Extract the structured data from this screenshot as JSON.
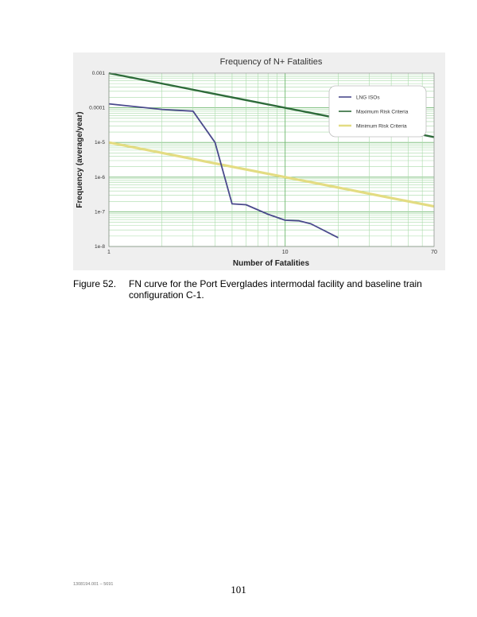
{
  "chart_data": {
    "type": "line",
    "title": "Frequency of N+ Fatalities",
    "xlabel": "Number of Fatalities",
    "ylabel": "Frequency (average/year)",
    "x_scale": "log",
    "y_scale": "log",
    "xlim": [
      1,
      70
    ],
    "ylim": [
      1e-08,
      0.001
    ],
    "x_tick_labels": [
      {
        "value": 1,
        "label": "1"
      },
      {
        "value": 10,
        "label": "10"
      },
      {
        "value": 70,
        "label": "70"
      }
    ],
    "y_tick_labels": [
      {
        "value": 0.001,
        "label": "0.001"
      },
      {
        "value": 0.0001,
        "label": "0.0001"
      },
      {
        "value": 1e-05,
        "label": "1e-5"
      },
      {
        "value": 1e-06,
        "label": "1e-6"
      },
      {
        "value": 1e-07,
        "label": "1e-7"
      },
      {
        "value": 1e-08,
        "label": "1e-8"
      }
    ],
    "grid": true,
    "legend_position": "top-right",
    "series": [
      {
        "name": "LNG ISOs",
        "color": "#4a4a8c",
        "x": [
          1,
          2,
          3,
          4,
          5,
          6,
          8,
          10,
          12,
          14,
          20
        ],
        "y": [
          0.00013,
          9e-05,
          8e-05,
          1e-05,
          1.7e-07,
          1.6e-07,
          8.5e-08,
          5.7e-08,
          5.5e-08,
          4.5e-08,
          1.8e-08
        ]
      },
      {
        "name": "Maximum Risk Criteria",
        "color": "#2e6b3a",
        "x": [
          1,
          70
        ],
        "y": [
          0.001,
          1.43e-05
        ]
      },
      {
        "name": "Minimum Risk Criteria",
        "color": "#e3dc82",
        "x": [
          1,
          70
        ],
        "y": [
          1e-05,
          1.43e-07
        ]
      }
    ]
  },
  "caption": {
    "figure_number": "Figure 52.",
    "text": "FN curve for the Port Everglades intermodal facility and baseline train configuration C-1."
  },
  "footer": {
    "doc_id": "1308194.001 – 5691",
    "page_number": "101"
  }
}
